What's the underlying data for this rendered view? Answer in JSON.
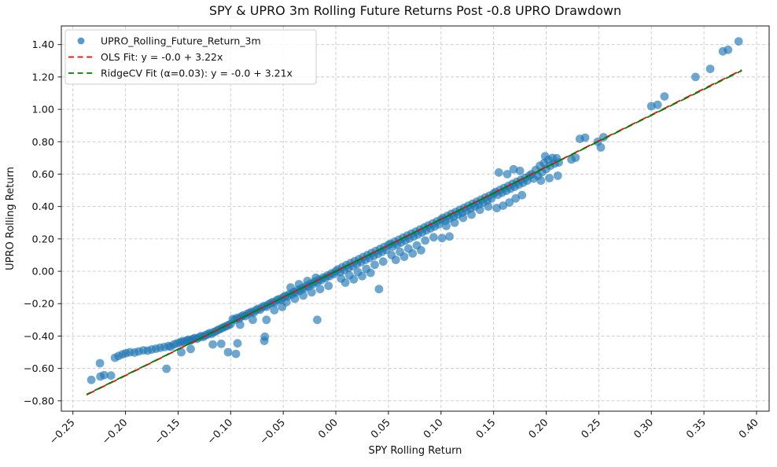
{
  "chart_data": {
    "type": "scatter",
    "title": "SPY & UPRO 3m Rolling Future Returns Post -0.8 UPRO Drawdown",
    "xlabel": "SPY Rolling Return",
    "ylabel": "UPRO Rolling Return",
    "xlim": [
      -0.261,
      0.412
    ],
    "ylim": [
      -0.864,
      1.515
    ],
    "x_ticks": [
      -0.25,
      -0.2,
      -0.15,
      -0.1,
      -0.05,
      0.0,
      0.05,
      0.1,
      0.15,
      0.2,
      0.25,
      0.3,
      0.35,
      0.4
    ],
    "y_ticks": [
      -0.8,
      -0.6,
      -0.4,
      -0.2,
      0.0,
      0.2,
      0.4,
      0.6,
      0.8,
      1.0,
      1.2,
      1.4
    ],
    "grid": true,
    "grid_color": "#c9c9c9",
    "legend_position": "upper left",
    "series": [
      {
        "name": "UPRO_Rolling_Future_Return_3m",
        "type": "scatter",
        "color": "#1f77b4",
        "alpha": 0.65,
        "points": [
          [
            -0.2325,
            -0.671
          ],
          [
            -0.2238,
            -0.65
          ],
          [
            -0.2203,
            -0.641
          ],
          [
            -0.2138,
            -0.644
          ],
          [
            -0.2243,
            -0.568
          ],
          [
            -0.21,
            -0.534
          ],
          [
            -0.2066,
            -0.523
          ],
          [
            -0.2028,
            -0.513
          ],
          [
            -0.1996,
            -0.506
          ],
          [
            -0.1959,
            -0.5
          ],
          [
            -0.1914,
            -0.502
          ],
          [
            -0.1874,
            -0.495
          ],
          [
            -0.183,
            -0.488
          ],
          [
            -0.179,
            -0.49
          ],
          [
            -0.175,
            -0.483
          ],
          [
            -0.171,
            -0.478
          ],
          [
            -0.167,
            -0.472
          ],
          [
            -0.163,
            -0.468
          ],
          [
            -0.161,
            -0.602
          ],
          [
            -0.159,
            -0.462
          ],
          [
            -0.157,
            -0.466
          ],
          [
            -0.154,
            -0.452
          ],
          [
            -0.151,
            -0.445
          ],
          [
            -0.148,
            -0.44
          ],
          [
            -0.146,
            -0.432
          ],
          [
            -0.144,
            -0.437
          ],
          [
            -0.142,
            -0.428
          ],
          [
            -0.14,
            -0.422
          ],
          [
            -0.138,
            -0.427
          ],
          [
            -0.136,
            -0.418
          ],
          [
            -0.134,
            -0.412
          ],
          [
            -0.132,
            -0.417
          ],
          [
            -0.13,
            -0.408
          ],
          [
            -0.128,
            -0.4
          ],
          [
            -0.126,
            -0.405
          ],
          [
            -0.124,
            -0.395
          ],
          [
            -0.122,
            -0.39
          ],
          [
            -0.12,
            -0.382
          ],
          [
            -0.118,
            -0.386
          ],
          [
            -0.116,
            -0.375
          ],
          [
            -0.114,
            -0.37
          ],
          [
            -0.112,
            -0.362
          ],
          [
            -0.11,
            -0.357
          ],
          [
            -0.108,
            -0.35
          ],
          [
            -0.106,
            -0.344
          ],
          [
            -0.104,
            -0.338
          ],
          [
            -0.102,
            -0.332
          ],
          [
            -0.1,
            -0.326
          ],
          [
            -0.147,
            -0.5
          ],
          [
            -0.138,
            -0.48
          ],
          [
            -0.117,
            -0.452
          ],
          [
            -0.109,
            -0.448
          ],
          [
            -0.1025,
            -0.5
          ],
          [
            -0.095,
            -0.51
          ],
          [
            -0.0935,
            -0.445
          ],
          [
            -0.098,
            -0.295
          ],
          [
            -0.096,
            -0.3
          ],
          [
            -0.094,
            -0.288
          ],
          [
            -0.092,
            -0.292
          ],
          [
            -0.09,
            -0.28
          ],
          [
            -0.088,
            -0.272
          ],
          [
            -0.086,
            -0.277
          ],
          [
            -0.084,
            -0.262
          ],
          [
            -0.082,
            -0.257
          ],
          [
            -0.08,
            -0.25
          ],
          [
            -0.078,
            -0.255
          ],
          [
            -0.076,
            -0.24
          ],
          [
            -0.074,
            -0.232
          ],
          [
            -0.072,
            -0.237
          ],
          [
            -0.07,
            -0.222
          ],
          [
            -0.068,
            -0.214
          ],
          [
            -0.066,
            -0.219
          ],
          [
            -0.064,
            -0.204
          ],
          [
            -0.062,
            -0.197
          ],
          [
            -0.06,
            -0.19
          ],
          [
            -0.058,
            -0.195
          ],
          [
            -0.056,
            -0.178
          ],
          [
            -0.054,
            -0.172
          ],
          [
            -0.052,
            -0.176
          ],
          [
            -0.05,
            -0.16
          ],
          [
            -0.091,
            -0.33
          ],
          [
            -0.079,
            -0.3
          ],
          [
            -0.068,
            -0.43
          ],
          [
            -0.0675,
            -0.404
          ],
          [
            -0.066,
            -0.3
          ],
          [
            -0.0585,
            -0.24
          ],
          [
            -0.051,
            -0.22
          ],
          [
            -0.048,
            -0.152
          ],
          [
            -0.046,
            -0.156
          ],
          [
            -0.044,
            -0.14
          ],
          [
            -0.042,
            -0.144
          ],
          [
            -0.04,
            -0.128
          ],
          [
            -0.038,
            -0.132
          ],
          [
            -0.036,
            -0.115
          ],
          [
            -0.034,
            -0.12
          ],
          [
            -0.032,
            -0.102
          ],
          [
            -0.03,
            -0.107
          ],
          [
            -0.028,
            -0.09
          ],
          [
            -0.026,
            -0.094
          ],
          [
            -0.024,
            -0.077
          ],
          [
            -0.022,
            -0.081
          ],
          [
            -0.02,
            -0.064
          ],
          [
            -0.018,
            -0.068
          ],
          [
            -0.016,
            -0.051
          ],
          [
            -0.014,
            -0.055
          ],
          [
            -0.012,
            -0.038
          ],
          [
            -0.01,
            -0.042
          ],
          [
            -0.008,
            -0.026
          ],
          [
            -0.006,
            -0.03
          ],
          [
            -0.004,
            -0.013
          ],
          [
            -0.002,
            -0.017
          ],
          [
            0.0,
            0.0
          ],
          [
            -0.047,
            -0.19
          ],
          [
            -0.039,
            -0.17
          ],
          [
            -0.031,
            -0.15
          ],
          [
            -0.023,
            -0.13
          ],
          [
            -0.015,
            -0.11
          ],
          [
            -0.007,
            -0.09
          ],
          [
            -0.0177,
            -0.3
          ],
          [
            -0.043,
            -0.1
          ],
          [
            -0.035,
            -0.08
          ],
          [
            -0.027,
            -0.06
          ],
          [
            -0.019,
            -0.04
          ],
          [
            0.002,
            0.012
          ],
          [
            0.004,
            -0.005
          ],
          [
            0.006,
            0.025
          ],
          [
            0.008,
            0.007
          ],
          [
            0.01,
            0.038
          ],
          [
            0.012,
            0.02
          ],
          [
            0.014,
            0.05
          ],
          [
            0.016,
            0.032
          ],
          [
            0.018,
            0.063
          ],
          [
            0.02,
            0.045
          ],
          [
            0.022,
            0.075
          ],
          [
            0.024,
            0.057
          ],
          [
            0.026,
            0.088
          ],
          [
            0.028,
            0.07
          ],
          [
            0.03,
            0.1
          ],
          [
            0.032,
            0.082
          ],
          [
            0.034,
            0.113
          ],
          [
            0.036,
            0.095
          ],
          [
            0.038,
            0.125
          ],
          [
            0.04,
            0.107
          ],
          [
            0.042,
            0.138
          ],
          [
            0.044,
            0.12
          ],
          [
            0.046,
            0.15
          ],
          [
            0.048,
            0.132
          ],
          [
            0.05,
            0.163
          ],
          [
            0.005,
            -0.045
          ],
          [
            0.013,
            -0.025
          ],
          [
            0.021,
            -0.005
          ],
          [
            0.029,
            0.015
          ],
          [
            0.037,
            0.04
          ],
          [
            0.045,
            0.06
          ],
          [
            0.041,
            -0.11
          ],
          [
            0.009,
            -0.07
          ],
          [
            0.017,
            -0.05
          ],
          [
            0.025,
            -0.03
          ],
          [
            0.033,
            -0.01
          ],
          [
            0.052,
            0.17
          ],
          [
            0.054,
            0.152
          ],
          [
            0.056,
            0.183
          ],
          [
            0.058,
            0.165
          ],
          [
            0.06,
            0.195
          ],
          [
            0.062,
            0.177
          ],
          [
            0.064,
            0.208
          ],
          [
            0.066,
            0.19
          ],
          [
            0.068,
            0.22
          ],
          [
            0.07,
            0.202
          ],
          [
            0.072,
            0.233
          ],
          [
            0.074,
            0.215
          ],
          [
            0.076,
            0.245
          ],
          [
            0.078,
            0.227
          ],
          [
            0.08,
            0.258
          ],
          [
            0.082,
            0.24
          ],
          [
            0.084,
            0.27
          ],
          [
            0.086,
            0.252
          ],
          [
            0.088,
            0.283
          ],
          [
            0.09,
            0.265
          ],
          [
            0.092,
            0.295
          ],
          [
            0.094,
            0.277
          ],
          [
            0.096,
            0.308
          ],
          [
            0.098,
            0.29
          ],
          [
            0.1,
            0.32
          ],
          [
            0.053,
            0.1
          ],
          [
            0.061,
            0.12
          ],
          [
            0.069,
            0.14
          ],
          [
            0.077,
            0.16
          ],
          [
            0.085,
            0.19
          ],
          [
            0.093,
            0.21
          ],
          [
            0.057,
            0.07
          ],
          [
            0.065,
            0.09
          ],
          [
            0.073,
            0.11
          ],
          [
            0.081,
            0.13
          ],
          [
            0.102,
            0.33
          ],
          [
            0.104,
            0.312
          ],
          [
            0.106,
            0.342
          ],
          [
            0.108,
            0.325
          ],
          [
            0.11,
            0.355
          ],
          [
            0.112,
            0.337
          ],
          [
            0.114,
            0.367
          ],
          [
            0.116,
            0.35
          ],
          [
            0.118,
            0.38
          ],
          [
            0.12,
            0.362
          ],
          [
            0.122,
            0.392
          ],
          [
            0.124,
            0.375
          ],
          [
            0.126,
            0.405
          ],
          [
            0.128,
            0.387
          ],
          [
            0.13,
            0.417
          ],
          [
            0.132,
            0.4
          ],
          [
            0.134,
            0.43
          ],
          [
            0.136,
            0.412
          ],
          [
            0.138,
            0.442
          ],
          [
            0.14,
            0.425
          ],
          [
            0.142,
            0.455
          ],
          [
            0.144,
            0.437
          ],
          [
            0.146,
            0.467
          ],
          [
            0.148,
            0.45
          ],
          [
            0.15,
            0.48
          ],
          [
            0.101,
            0.205
          ],
          [
            0.108,
            0.215
          ],
          [
            0.105,
            0.28
          ],
          [
            0.113,
            0.3
          ],
          [
            0.121,
            0.33
          ],
          [
            0.129,
            0.35
          ],
          [
            0.137,
            0.38
          ],
          [
            0.145,
            0.4
          ],
          [
            0.152,
            0.49
          ],
          [
            0.154,
            0.472
          ],
          [
            0.156,
            0.502
          ],
          [
            0.158,
            0.485
          ],
          [
            0.16,
            0.515
          ],
          [
            0.162,
            0.497
          ],
          [
            0.164,
            0.527
          ],
          [
            0.166,
            0.51
          ],
          [
            0.168,
            0.54
          ],
          [
            0.17,
            0.522
          ],
          [
            0.172,
            0.552
          ],
          [
            0.174,
            0.535
          ],
          [
            0.176,
            0.565
          ],
          [
            0.178,
            0.547
          ],
          [
            0.18,
            0.577
          ],
          [
            0.182,
            0.56
          ],
          [
            0.184,
            0.59
          ],
          [
            0.153,
            0.39
          ],
          [
            0.159,
            0.405
          ],
          [
            0.165,
            0.425
          ],
          [
            0.171,
            0.45
          ],
          [
            0.177,
            0.47
          ],
          [
            0.155,
            0.61
          ],
          [
            0.163,
            0.6
          ],
          [
            0.169,
            0.63
          ],
          [
            0.175,
            0.62
          ],
          [
            0.186,
            0.6
          ],
          [
            0.188,
            0.572
          ],
          [
            0.19,
            0.625
          ],
          [
            0.192,
            0.59
          ],
          [
            0.194,
            0.652
          ],
          [
            0.196,
            0.612
          ],
          [
            0.198,
            0.668
          ],
          [
            0.2,
            0.632
          ],
          [
            0.202,
            0.688
          ],
          [
            0.204,
            0.652
          ],
          [
            0.206,
            0.7
          ],
          [
            0.208,
            0.665
          ],
          [
            0.21,
            0.698
          ],
          [
            0.212,
            0.672
          ],
          [
            0.195,
            0.56
          ],
          [
            0.203,
            0.575
          ],
          [
            0.211,
            0.59
          ],
          [
            0.199,
            0.71
          ],
          [
            0.224,
            0.69
          ],
          [
            0.228,
            0.702
          ],
          [
            0.232,
            0.818
          ],
          [
            0.237,
            0.825
          ],
          [
            0.249,
            0.8
          ],
          [
            0.2545,
            0.828
          ],
          [
            0.252,
            0.765
          ],
          [
            0.3,
            1.02
          ],
          [
            0.306,
            1.028
          ],
          [
            0.3125,
            1.08
          ],
          [
            0.342,
            1.2
          ],
          [
            0.356,
            1.25
          ],
          [
            0.368,
            1.358
          ],
          [
            0.373,
            1.368
          ],
          [
            0.383,
            1.42
          ]
        ]
      }
    ],
    "fit_lines": [
      {
        "name": "OLS Fit: y = -0.0 + 3.22x",
        "slope": 3.22,
        "intercept": 0,
        "color": "#ff0000",
        "style": "dashed",
        "x_range": [
          -0.237,
          0.386
        ]
      },
      {
        "name": "RidgeCV Fit (α=0.03): y = -0.0 + 3.21x",
        "slope": 3.21,
        "intercept": 0,
        "color": "#008000",
        "style": "dashed",
        "x_range": [
          -0.237,
          0.386
        ]
      }
    ]
  }
}
